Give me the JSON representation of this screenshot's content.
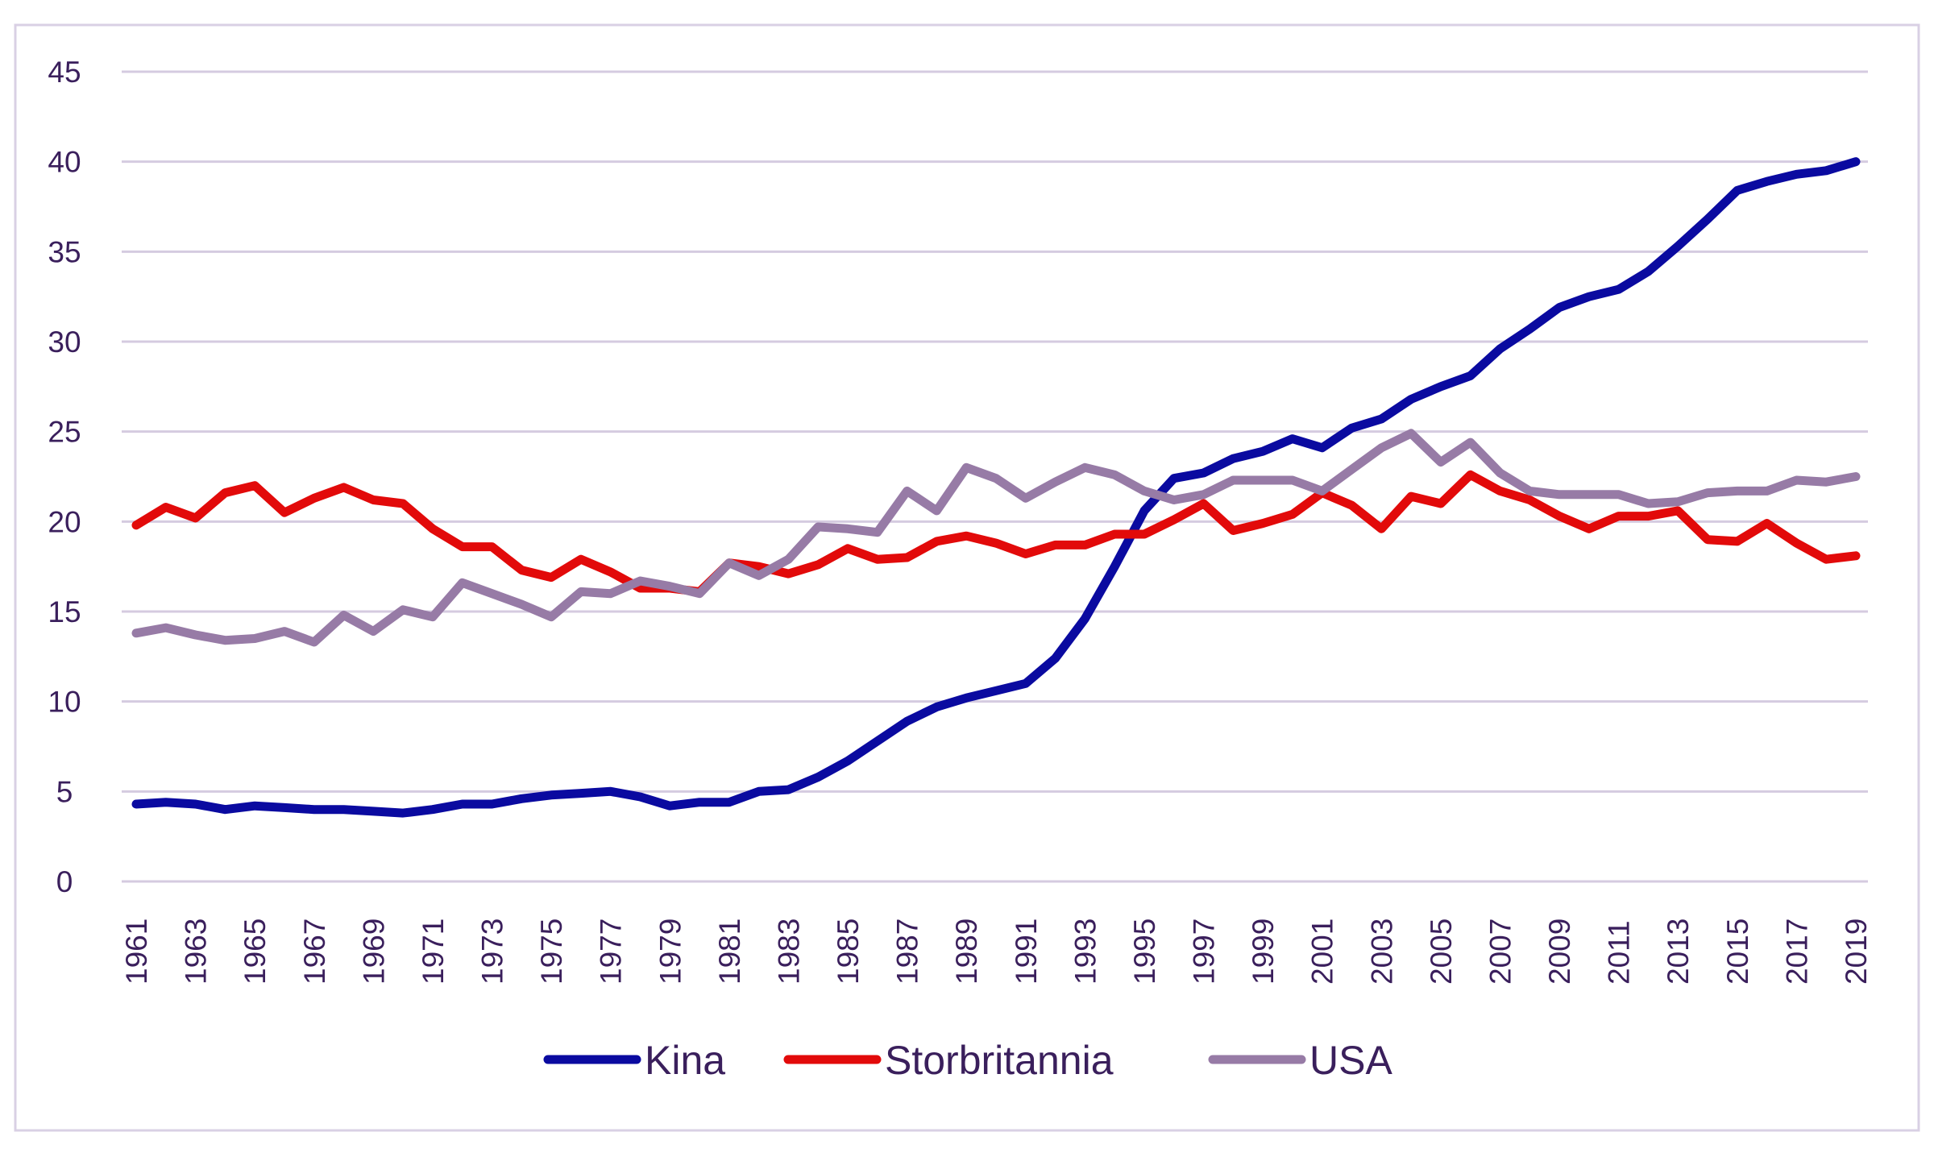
{
  "chart_data": {
    "type": "line",
    "title": "",
    "xlabel": "",
    "ylabel": "",
    "ylim": [
      0,
      45
    ],
    "yticks": [
      0,
      5,
      10,
      15,
      20,
      25,
      30,
      35,
      40,
      45
    ],
    "grid": true,
    "legend_position": "bottom",
    "x": [
      1961,
      1962,
      1963,
      1964,
      1965,
      1966,
      1967,
      1968,
      1969,
      1970,
      1971,
      1972,
      1973,
      1974,
      1975,
      1976,
      1977,
      1978,
      1979,
      1980,
      1981,
      1982,
      1983,
      1984,
      1985,
      1986,
      1987,
      1988,
      1989,
      1990,
      1991,
      1992,
      1993,
      1994,
      1995,
      1996,
      1997,
      1998,
      1999,
      2000,
      2001,
      2002,
      2003,
      2004,
      2005,
      2006,
      2007,
      2008,
      2009,
      2010,
      2011,
      2012,
      2013,
      2014,
      2015,
      2016,
      2017,
      2018,
      2019
    ],
    "xtick_labels": [
      "1961",
      "1963",
      "1965",
      "1967",
      "1969",
      "1971",
      "1973",
      "1975",
      "1977",
      "1979",
      "1981",
      "1983",
      "1985",
      "1987",
      "1989",
      "1991",
      "1993",
      "1995",
      "1997",
      "1999",
      "2001",
      "2003",
      "2005",
      "2007",
      "2009",
      "2011",
      "2013",
      "2015",
      "2017",
      "2019"
    ],
    "series": [
      {
        "name": "Kina",
        "color": "#0a0aa0",
        "values": [
          4.3,
          4.4,
          4.3,
          4.0,
          4.2,
          4.1,
          4.0,
          4.0,
          3.9,
          3.8,
          4.0,
          4.3,
          4.3,
          4.6,
          4.8,
          4.9,
          5.0,
          4.7,
          4.2,
          4.4,
          4.4,
          5.0,
          5.1,
          5.8,
          6.7,
          7.8,
          8.9,
          9.7,
          10.2,
          10.6,
          11.0,
          12.4,
          14.6,
          17.5,
          20.6,
          22.4,
          22.7,
          23.5,
          23.9,
          24.6,
          24.1,
          25.2,
          25.7,
          26.8,
          27.5,
          28.1,
          29.6,
          30.7,
          31.9,
          32.5,
          32.9,
          33.9,
          35.3,
          36.8,
          38.4,
          38.9,
          39.3,
          39.5,
          40.0
        ]
      },
      {
        "name": "Storbritannia",
        "color": "#e20a0a",
        "values": [
          19.8,
          20.8,
          20.2,
          21.6,
          22.0,
          20.5,
          21.3,
          21.9,
          21.2,
          21.0,
          19.6,
          18.6,
          18.6,
          17.3,
          16.9,
          17.9,
          17.2,
          16.3,
          16.3,
          16.1,
          17.7,
          17.5,
          17.1,
          17.6,
          18.5,
          17.9,
          18.0,
          18.9,
          19.2,
          18.8,
          18.2,
          18.7,
          18.7,
          19.3,
          19.3,
          20.1,
          21.0,
          19.5,
          19.9,
          20.4,
          21.6,
          20.9,
          19.6,
          21.4,
          21.0,
          22.6,
          21.7,
          21.2,
          20.3,
          19.6,
          20.3,
          20.3,
          20.6,
          19.0,
          18.9,
          19.9,
          18.8,
          17.9,
          18.1
        ]
      },
      {
        "name": "USA",
        "color": "#977ba6",
        "values": [
          13.8,
          14.1,
          13.7,
          13.4,
          13.5,
          13.9,
          13.3,
          14.8,
          13.9,
          15.1,
          14.7,
          16.6,
          16.0,
          15.4,
          14.7,
          16.1,
          16.0,
          16.7,
          16.4,
          16.0,
          17.7,
          17.0,
          17.9,
          19.7,
          19.6,
          19.4,
          21.7,
          20.6,
          23.0,
          22.4,
          21.3,
          22.2,
          23.0,
          22.6,
          21.7,
          21.2,
          21.5,
          22.3,
          22.3,
          22.3,
          21.7,
          22.9,
          24.1,
          24.9,
          23.3,
          24.4,
          22.7,
          21.7,
          21.5,
          21.5,
          21.5,
          21.0,
          21.1,
          21.6,
          21.7,
          21.7,
          22.3,
          22.2,
          22.5
        ]
      }
    ]
  },
  "colors": {
    "grid": "#d5cbe0",
    "text": "#3a1f5c",
    "frame": "#d9d0e4"
  }
}
